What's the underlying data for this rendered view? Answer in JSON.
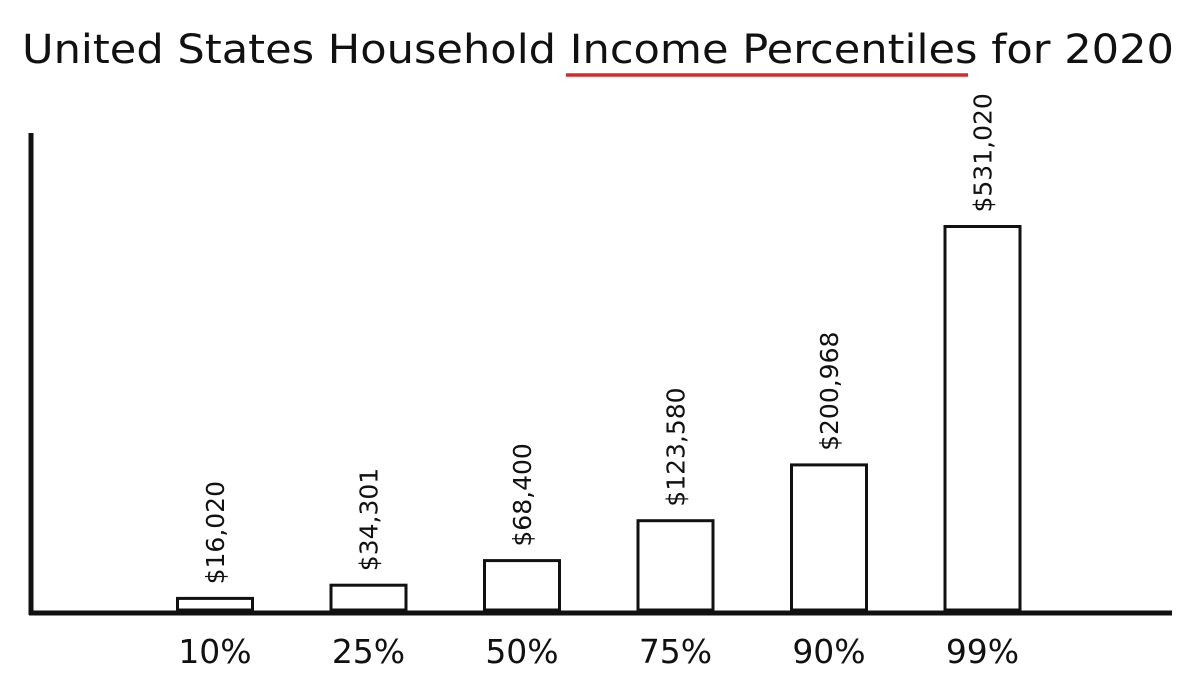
{
  "chart_data": {
    "type": "bar",
    "title": "United States Household Income Percentiles for 2020",
    "title_parts": {
      "before": "United States Household ",
      "highlight": "Income Percentiles",
      "after": " for 2020"
    },
    "categories": [
      "10%",
      "25%",
      "50%",
      "75%",
      "90%",
      "99%"
    ],
    "values": [
      16020,
      34301,
      68400,
      123580,
      200968,
      531020
    ],
    "value_labels": [
      "$16,020",
      "$34,301",
      "$68,400",
      "$123,580",
      "$200,968",
      "$531,020"
    ],
    "xlabel": "",
    "ylabel": "",
    "ylim": [
      0,
      720000
    ],
    "grid": false,
    "legend": "none"
  },
  "colors": {
    "ink": "#111111",
    "underline": "#d42a2a",
    "bar_fill": "#ffffff",
    "background": "#ffffff"
  }
}
